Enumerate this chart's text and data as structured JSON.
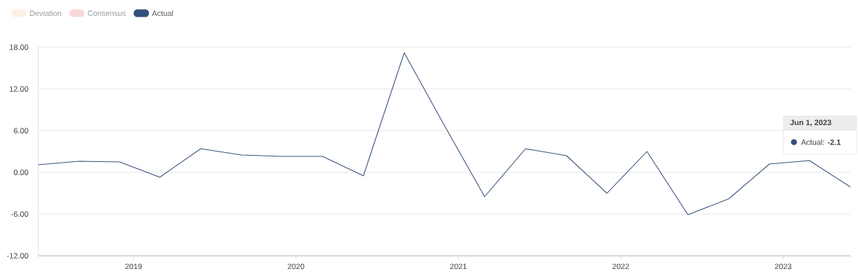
{
  "chart_data": {
    "type": "line",
    "x": [
      "2018-06-01",
      "2018-09-01",
      "2018-12-01",
      "2019-03-01",
      "2019-06-01",
      "2019-09-01",
      "2019-12-01",
      "2020-03-01",
      "2020-06-01",
      "2020-09-01",
      "2020-12-01",
      "2021-03-01",
      "2021-06-01",
      "2021-09-01",
      "2021-12-01",
      "2022-03-01",
      "2022-06-01",
      "2022-09-01",
      "2022-12-01",
      "2023-03-01",
      "2023-06-01"
    ],
    "series": [
      {
        "name": "Deviation",
        "color": "#fdf0e6",
        "values": [
          null,
          null,
          null,
          null,
          null,
          null,
          null,
          null,
          null,
          null,
          null,
          null,
          null,
          null,
          null,
          null,
          null,
          null,
          null,
          null,
          null
        ]
      },
      {
        "name": "Consensus",
        "color": "#f6d9d8",
        "values": [
          null,
          null,
          null,
          null,
          null,
          null,
          null,
          null,
          null,
          null,
          null,
          null,
          null,
          null,
          null,
          null,
          null,
          null,
          null,
          null,
          null
        ]
      },
      {
        "name": "Actual",
        "color": "#34507a",
        "values": [
          1.1,
          1.6,
          1.5,
          -0.7,
          3.4,
          2.5,
          2.3,
          2.3,
          -0.5,
          17.2,
          6.7,
          -3.5,
          3.4,
          2.4,
          -3.0,
          3.0,
          -6.1,
          -3.8,
          1.2,
          1.7,
          -2.1
        ]
      }
    ],
    "xlim": [
      "2018-06-01",
      "2023-06-01"
    ],
    "xticks": [
      {
        "value": "2019-01-01",
        "label": "2019"
      },
      {
        "value": "2020-01-01",
        "label": "2020"
      },
      {
        "value": "2021-01-01",
        "label": "2021"
      },
      {
        "value": "2022-01-01",
        "label": "2022"
      },
      {
        "value": "2023-01-01",
        "label": "2023"
      }
    ],
    "ylim": [
      -12,
      18
    ],
    "yticks": [
      {
        "value": -12,
        "label": "-12.00"
      },
      {
        "value": -6,
        "label": "-6.00"
      },
      {
        "value": 0,
        "label": "0.00"
      },
      {
        "value": 6,
        "label": "6.00"
      },
      {
        "value": 12,
        "label": "12.00"
      },
      {
        "value": 18,
        "label": "18.00"
      }
    ],
    "grid": "y",
    "legend": "top left",
    "marker": "none",
    "line_style": "solid",
    "annotations": [
      "Jun 1, 2023",
      "Actual:  **-2.1**"
    ]
  }
}
